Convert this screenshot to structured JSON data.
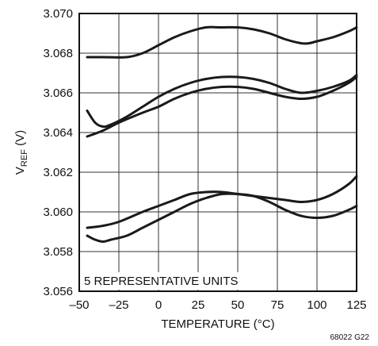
{
  "chart_data": {
    "type": "line",
    "xlabel": "TEMPERATURE (°C)",
    "ylabel_main": "V",
    "ylabel_sub": "REF",
    "ylabel_unit": " (V)",
    "xlim": [
      -50,
      125
    ],
    "ylim": [
      3.056,
      3.07
    ],
    "x_ticks": [
      -50,
      -25,
      0,
      25,
      50,
      75,
      100,
      125
    ],
    "x_tick_labels": [
      "–50",
      "–25",
      "0",
      "25",
      "50",
      "75",
      "100",
      "125"
    ],
    "y_ticks": [
      3.056,
      3.058,
      3.06,
      3.062,
      3.064,
      3.066,
      3.068,
      3.07
    ],
    "y_tick_labels": [
      "3.056",
      "3.058",
      "3.060",
      "3.062",
      "3.064",
      "3.066",
      "3.068",
      "3.070"
    ],
    "grid": true,
    "annotation": "5 REPRESENTATIVE UNITS",
    "figure_id": "68022 G22",
    "line_color": "#1a1a1a",
    "grid_color": "#333333",
    "series": [
      {
        "x": [
          -45,
          -35,
          -20,
          -10,
          0,
          10,
          20,
          30,
          40,
          50,
          60,
          70,
          80,
          90,
          95,
          100,
          110,
          120,
          125
        ],
        "y": [
          3.0678,
          3.0678,
          3.0678,
          3.068,
          3.0684,
          3.0688,
          3.0691,
          3.0693,
          3.0693,
          3.0693,
          3.0692,
          3.069,
          3.0687,
          3.0685,
          3.0685,
          3.0686,
          3.0688,
          3.0691,
          3.0693
        ]
      },
      {
        "x": [
          -45,
          -40,
          -35,
          -30,
          -20,
          -10,
          0,
          10,
          20,
          30,
          40,
          50,
          60,
          70,
          80,
          90,
          100,
          110,
          120,
          125
        ],
        "y": [
          3.0651,
          3.0645,
          3.0643,
          3.0644,
          3.0648,
          3.0653,
          3.0658,
          3.0662,
          3.0665,
          3.0667,
          3.0668,
          3.0668,
          3.0667,
          3.0665,
          3.0662,
          3.066,
          3.0661,
          3.0663,
          3.0666,
          3.0669
        ]
      },
      {
        "x": [
          -45,
          -35,
          -25,
          -10,
          0,
          10,
          20,
          30,
          40,
          50,
          60,
          70,
          80,
          90,
          100,
          110,
          120,
          125
        ],
        "y": [
          3.0638,
          3.0641,
          3.0645,
          3.065,
          3.0653,
          3.0657,
          3.066,
          3.0662,
          3.0663,
          3.0663,
          3.0662,
          3.066,
          3.0658,
          3.0657,
          3.0658,
          3.0661,
          3.0665,
          3.0668
        ]
      },
      {
        "x": [
          -45,
          -35,
          -25,
          -10,
          0,
          10,
          20,
          30,
          40,
          50,
          60,
          70,
          80,
          90,
          100,
          110,
          120,
          125
        ],
        "y": [
          3.0592,
          3.0593,
          3.0595,
          3.06,
          3.0603,
          3.0606,
          3.0609,
          3.061,
          3.061,
          3.0609,
          3.0608,
          3.0607,
          3.0606,
          3.0605,
          3.0606,
          3.0609,
          3.0614,
          3.0618
        ]
      },
      {
        "x": [
          -45,
          -40,
          -35,
          -30,
          -20,
          -10,
          0,
          10,
          20,
          30,
          40,
          50,
          60,
          70,
          80,
          90,
          100,
          110,
          120,
          125
        ],
        "y": [
          3.0588,
          3.0586,
          3.0585,
          3.0586,
          3.0588,
          3.0592,
          3.0596,
          3.06,
          3.0604,
          3.0607,
          3.0609,
          3.0609,
          3.0608,
          3.0605,
          3.0601,
          3.0598,
          3.0597,
          3.0598,
          3.0601,
          3.0603
        ]
      }
    ]
  }
}
